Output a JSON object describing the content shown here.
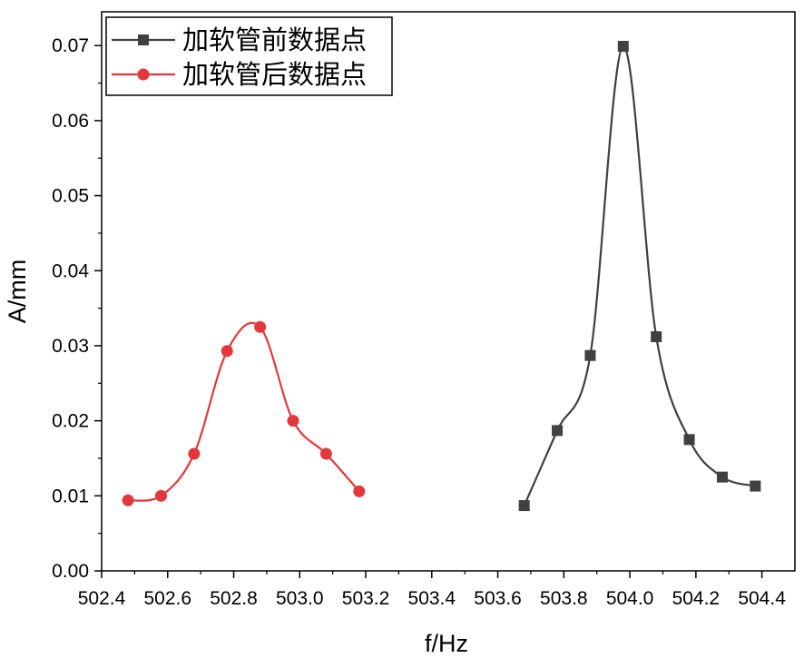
{
  "chart_data": {
    "type": "line",
    "xlabel": "f/Hz",
    "ylabel": "A/mm",
    "xlim": [
      502.4,
      504.5
    ],
    "ylim": [
      0.0,
      0.0745
    ],
    "xticks": [
      "502.4",
      "502.6",
      "502.8",
      "503.0",
      "503.2",
      "503.4",
      "503.6",
      "503.8",
      "504.0",
      "504.2",
      "504.4"
    ],
    "yticks": [
      "0.00",
      "0.01",
      "0.02",
      "0.03",
      "0.04",
      "0.05",
      "0.06",
      "0.07"
    ],
    "grid": false,
    "legend_position": "top-left",
    "series": [
      {
        "name": "加软管前数据点",
        "color": "#404040",
        "marker": "square",
        "x": [
          503.68,
          503.78,
          503.88,
          503.98,
          504.08,
          504.18,
          504.28,
          504.38
        ],
        "y": [
          0.0087,
          0.0187,
          0.0287,
          0.0699,
          0.0312,
          0.0175,
          0.0125,
          0.0113
        ]
      },
      {
        "name": "加软管后数据点",
        "color": "#e2373b",
        "marker": "circle",
        "x": [
          502.48,
          502.58,
          502.68,
          502.78,
          502.88,
          502.98,
          503.08,
          503.18
        ],
        "y": [
          0.0094,
          0.01,
          0.0156,
          0.0293,
          0.0325,
          0.02,
          0.0156,
          0.0106
        ]
      }
    ]
  }
}
